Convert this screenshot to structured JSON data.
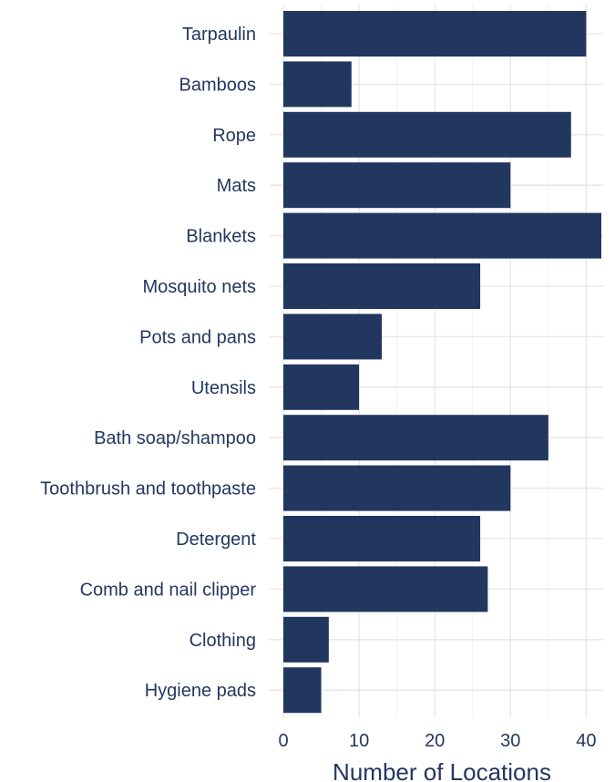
{
  "chart_data": {
    "type": "bar",
    "orientation": "horizontal",
    "title": "",
    "xlabel": "Number of Locations",
    "ylabel": "",
    "categories": [
      "Tarpaulin",
      "Bamboos",
      "Rope",
      "Mats",
      "Blankets",
      "Mosquito nets",
      "Pots and pans",
      "Utensils",
      "Bath soap/shampoo",
      "Toothbrush and toothpaste",
      "Detergent",
      "Comb and nail clipper",
      "Clothing",
      "Hygiene pads"
    ],
    "values": [
      40,
      9,
      38,
      30,
      42,
      26,
      13,
      10,
      35,
      30,
      26,
      27,
      6,
      5
    ],
    "xlim": [
      0,
      42
    ],
    "xticks": [
      "0",
      "10",
      "20",
      "30",
      "40"
    ],
    "grid": true,
    "legend": "none",
    "bar_color": "#22375F",
    "text_color": "#23375F"
  }
}
